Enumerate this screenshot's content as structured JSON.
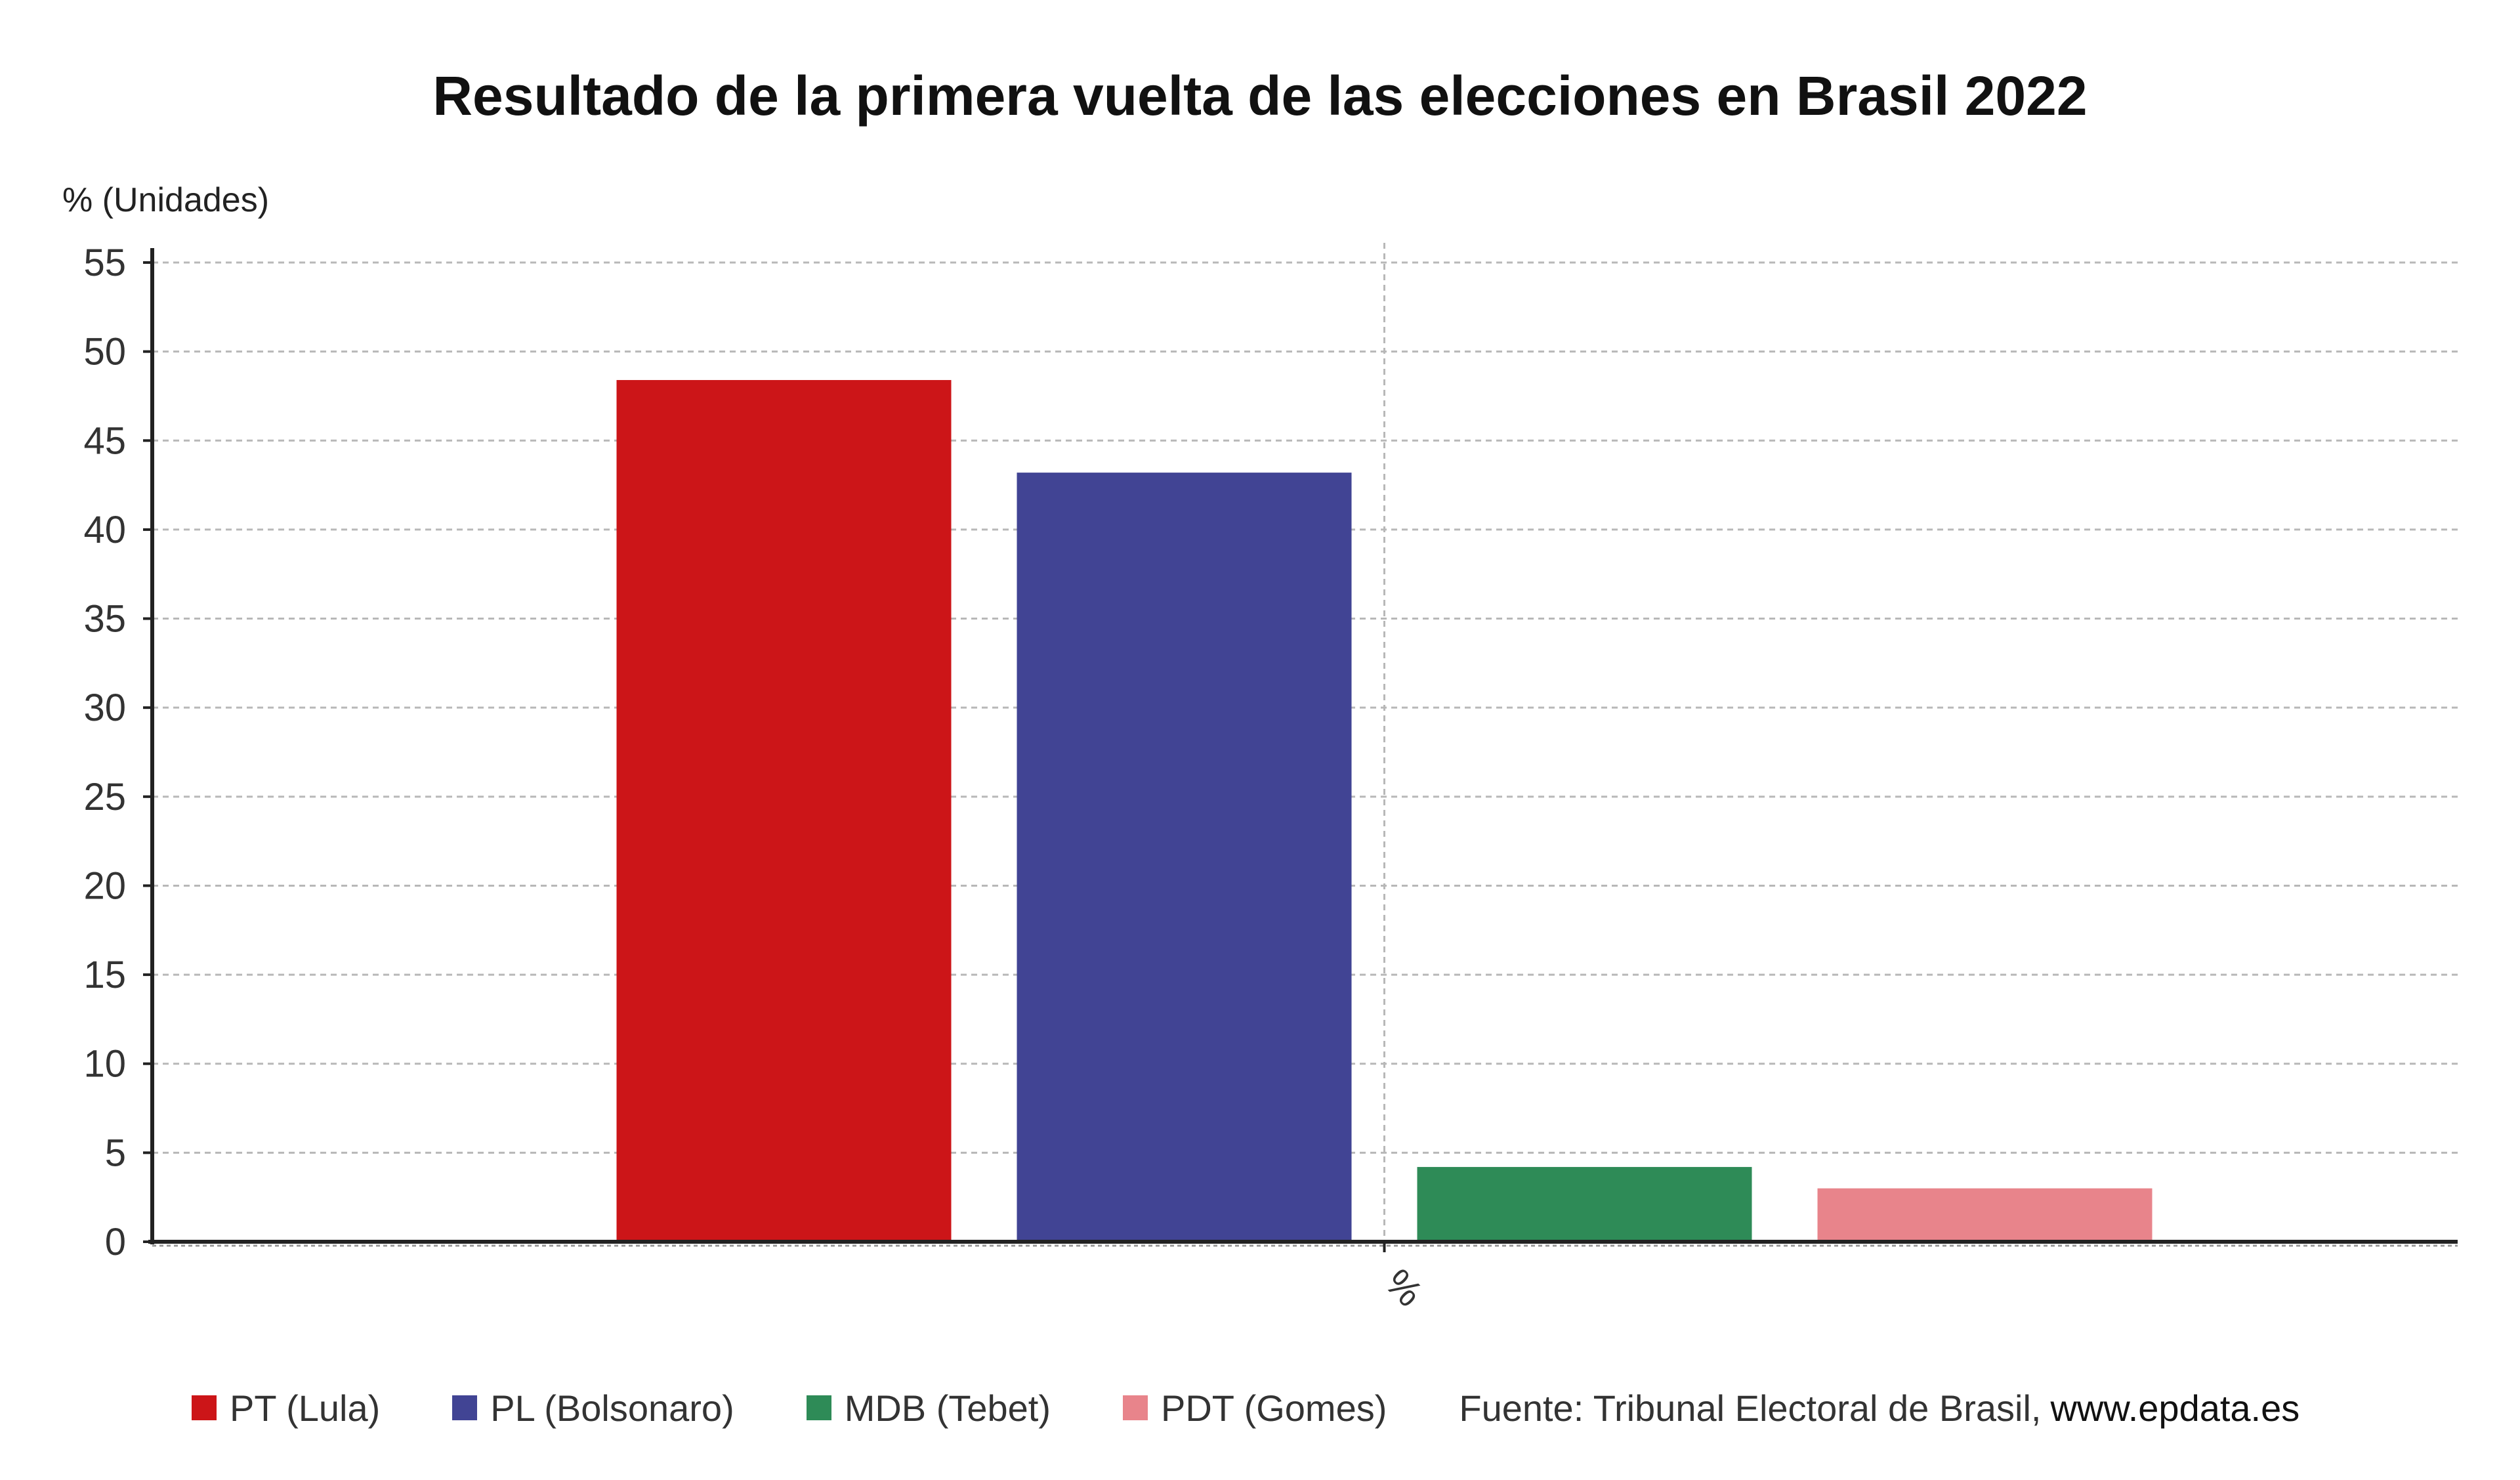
{
  "chart_data": {
    "type": "bar",
    "title": "Resultado de la primera vuelta de las elecciones en Brasil 2022",
    "ylabel": "% (Unidades)",
    "xlabel": "",
    "categories": [
      "%"
    ],
    "ylim": [
      0,
      55
    ],
    "yticks": [
      0,
      5,
      10,
      15,
      20,
      25,
      30,
      35,
      40,
      45,
      50,
      55
    ],
    "grid": true,
    "legend_position": "bottom",
    "series": [
      {
        "name": "PT (Lula)",
        "values": [
          48.4
        ],
        "color": "#cc1518"
      },
      {
        "name": "PL (Bolsonaro)",
        "values": [
          43.2
        ],
        "color": "#414494"
      },
      {
        "name": "MDB (Tebet)",
        "values": [
          4.2
        ],
        "color": "#2e8b57"
      },
      {
        "name": "PDT (Gomes)",
        "values": [
          3.0
        ],
        "color": "#e8848b"
      }
    ]
  },
  "source": {
    "label": "Fuente: Tribunal Electoral de Brasil,",
    "site": "www.epdata.es"
  }
}
